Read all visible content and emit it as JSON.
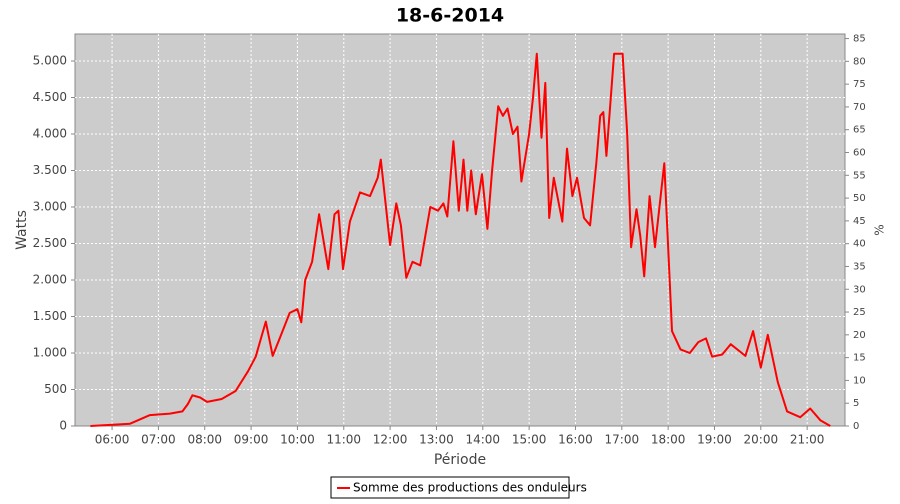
{
  "chart_data": {
    "type": "line",
    "title": "18-6-2014",
    "x_label": "Période",
    "y_label": "Watts",
    "y2_label": "%",
    "x": [
      "05:32",
      "06:23",
      "06:49",
      "07:15",
      "07:31",
      "07:38",
      "07:44",
      "07:54",
      "08:03",
      "08:22",
      "08:40",
      "08:56",
      "09:06",
      "09:19",
      "09:28",
      "09:37",
      "09:50",
      "10:00",
      "10:05",
      "10:10",
      "10:19",
      "10:28",
      "10:40",
      "10:48",
      "10:53",
      "10:59",
      "11:08",
      "11:21",
      "11:34",
      "11:44",
      "11:48",
      "12:00",
      "12:08",
      "12:14",
      "12:21",
      "12:29",
      "12:39",
      "12:52",
      "13:02",
      "13:09",
      "13:14",
      "13:22",
      "13:29",
      "13:35",
      "13:40",
      "13:45",
      "13:51",
      "13:59",
      "14:06",
      "14:12",
      "14:20",
      "14:26",
      "14:32",
      "14:39",
      "14:45",
      "14:50",
      "15:00",
      "15:05",
      "15:10",
      "15:16",
      "15:21",
      "15:26",
      "15:32",
      "15:43",
      "15:49",
      "15:56",
      "16:02",
      "16:11",
      "16:19",
      "16:27",
      "16:32",
      "16:36",
      "16:40",
      "16:50",
      "17:01",
      "17:07",
      "17:12",
      "17:19",
      "17:24",
      "17:29",
      "17:36",
      "17:43",
      "17:55",
      "18:05",
      "18:16",
      "18:28",
      "18:39",
      "18:49",
      "18:57",
      "19:10",
      "19:21",
      "19:40",
      "19:50",
      "20:00",
      "20:09",
      "20:22",
      "20:34",
      "20:51",
      "21:04",
      "21:17",
      "21:30"
    ],
    "series": [
      {
        "name": "Somme des productions des onduleurs",
        "color": "#ff0000",
        "values": [
          0,
          30,
          150,
          170,
          200,
          300,
          420,
          390,
          330,
          370,
          480,
          750,
          950,
          1430,
          960,
          1200,
          1550,
          1600,
          1420,
          2000,
          2250,
          2900,
          2150,
          2900,
          2950,
          2150,
          2800,
          3200,
          3150,
          3400,
          3650,
          2480,
          3050,
          2750,
          2030,
          2250,
          2200,
          3000,
          2950,
          3050,
          2870,
          3900,
          2950,
          3650,
          2950,
          3500,
          2900,
          3450,
          2700,
          3500,
          4380,
          4250,
          4350,
          4000,
          4100,
          3350,
          4000,
          4500,
          5100,
          3950,
          4700,
          2850,
          3400,
          2800,
          3800,
          3150,
          3400,
          2850,
          2750,
          3600,
          4250,
          4300,
          3700,
          5100,
          5100,
          4000,
          2450,
          2970,
          2600,
          2050,
          3150,
          2450,
          3600,
          1300,
          1050,
          1000,
          1150,
          1200,
          950,
          980,
          1120,
          960,
          1300,
          800,
          1250,
          600,
          200,
          120,
          240,
          80,
          0
        ]
      }
    ],
    "xlim": [
      "05:12",
      "21:49"
    ],
    "xticks": [
      "06:00",
      "07:00",
      "08:00",
      "09:00",
      "10:00",
      "11:00",
      "12:00",
      "13:00",
      "14:00",
      "15:00",
      "16:00",
      "17:00",
      "18:00",
      "19:00",
      "20:00",
      "21:00"
    ],
    "ylim": [
      0,
      5370
    ],
    "yticks": [
      0,
      500,
      {
        "value": 1000,
        "label": "1.000"
      },
      {
        "value": 1500,
        "label": "1.500"
      },
      {
        "value": 2000,
        "label": "2.000"
      },
      {
        "value": 2500,
        "label": "2.500"
      },
      {
        "value": 3000,
        "label": "3.000"
      },
      {
        "value": 3500,
        "label": "3.500"
      },
      {
        "value": 4000,
        "label": "4.000"
      },
      {
        "value": 4500,
        "label": "4.500"
      },
      {
        "value": 5000,
        "label": "5.000"
      }
    ],
    "y2lim": [
      0,
      86
    ],
    "y2ticks": [
      0,
      5,
      10,
      15,
      20,
      25,
      30,
      35,
      40,
      45,
      50,
      55,
      60,
      65,
      70,
      75,
      80,
      85
    ],
    "grid": true,
    "legend": "bottom"
  }
}
